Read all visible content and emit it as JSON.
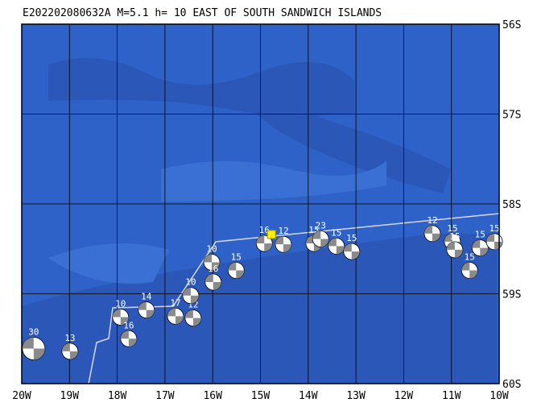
{
  "title": "E202202080632A M=5.1 h= 10 EAST OF SOUTH SANDWICH ISLANDS",
  "map": {
    "lonlim": [
      -20,
      -10
    ],
    "latlim": [
      -56,
      -60
    ],
    "lonticks": [
      {
        "value": -20,
        "label": "20W"
      },
      {
        "value": -19,
        "label": "19W"
      },
      {
        "value": -18,
        "label": "18W"
      },
      {
        "value": -17,
        "label": "17W"
      },
      {
        "value": -16,
        "label": "16W"
      },
      {
        "value": -15,
        "label": "15W"
      },
      {
        "value": -14,
        "label": "14W"
      },
      {
        "value": -13,
        "label": "13W"
      },
      {
        "value": -12,
        "label": "12W"
      },
      {
        "value": -11,
        "label": "11W"
      },
      {
        "value": -10,
        "label": "10W"
      }
    ],
    "latticks": [
      {
        "value": -56,
        "label": "56S"
      },
      {
        "value": -57,
        "label": "57S"
      },
      {
        "value": -58,
        "label": "58S"
      },
      {
        "value": -59,
        "label": "59S"
      },
      {
        "value": -60,
        "label": "60S"
      }
    ],
    "epicenter": {
      "lon": -14.77,
      "lat": -58.34
    },
    "events": [
      {
        "label": "30",
        "lon": -19.75,
        "lat": -59.61
      },
      {
        "label": "13",
        "lon": -18.99,
        "lat": -59.64
      },
      {
        "label": "10",
        "lon": -17.93,
        "lat": -59.26
      },
      {
        "label": "16",
        "lon": -17.76,
        "lat": -59.5
      },
      {
        "label": "14",
        "lon": -17.39,
        "lat": -59.18
      },
      {
        "label": "17",
        "lon": -16.78,
        "lat": -59.25
      },
      {
        "label": "12",
        "lon": -16.41,
        "lat": -59.27
      },
      {
        "label": "10",
        "lon": -16.46,
        "lat": -59.02
      },
      {
        "label": "10",
        "lon": -16.02,
        "lat": -58.65
      },
      {
        "label": "16",
        "lon": -15.99,
        "lat": -58.87
      },
      {
        "label": "15",
        "lon": -15.51,
        "lat": -58.74
      },
      {
        "label": "16",
        "lon": -14.92,
        "lat": -58.44
      },
      {
        "label": "12",
        "lon": -14.52,
        "lat": -58.45
      },
      {
        "label": "15",
        "lon": -13.88,
        "lat": -58.44
      },
      {
        "label": "23",
        "lon": -13.74,
        "lat": -58.39
      },
      {
        "label": "15",
        "lon": -13.41,
        "lat": -58.47
      },
      {
        "label": "15",
        "lon": -13.09,
        "lat": -58.53
      },
      {
        "label": "12",
        "lon": -11.4,
        "lat": -58.33
      },
      {
        "label": "15",
        "lon": -10.98,
        "lat": -58.42
      },
      {
        "label": "15",
        "lon": -10.93,
        "lat": -58.51
      },
      {
        "label": "15",
        "lon": -10.62,
        "lat": -58.74
      },
      {
        "label": "15",
        "lon": -10.4,
        "lat": -58.49
      },
      {
        "label": "15",
        "lon": -10.1,
        "lat": -58.42
      }
    ]
  }
}
